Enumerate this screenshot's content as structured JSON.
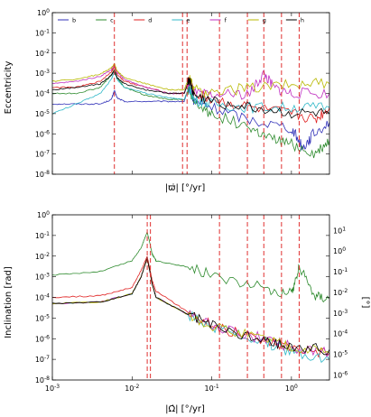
{
  "chart_data": [
    {
      "type": "line",
      "title": "",
      "xlabel": "|ϖ̇|  [°/yr]",
      "ylabel": "Eccentricity",
      "xscale": "log",
      "yscale": "log",
      "xlim": [
        0.001,
        3
      ],
      "ylim": [
        1e-08,
        1
      ],
      "xticks_shown": false,
      "yticks": [
        "10^0",
        "10^-1",
        "10^-2",
        "10^-3",
        "10^-4",
        "10^-5",
        "10^-6",
        "10^-7",
        "10^-8"
      ],
      "legend": {
        "placement": "top",
        "entries": [
          "b",
          "c",
          "d",
          "e",
          "f",
          "g",
          "h"
        ]
      },
      "vlines": [
        0.006,
        0.043,
        0.049,
        0.125,
        0.28,
        0.45,
        0.75,
        1.25
      ],
      "series": [
        {
          "name": "b",
          "color": "#3030b8",
          "x": [
            0.001,
            0.002,
            0.004,
            0.0055,
            0.006,
            0.0065,
            0.008,
            0.015,
            0.03,
            0.045,
            0.052,
            0.06,
            0.1,
            0.3,
            1,
            1.4,
            1.8,
            3
          ],
          "y": [
            3e-05,
            3e-05,
            3e-05,
            5e-05,
            0.00014,
            6e-05,
            4e-05,
            4e-05,
            4e-05,
            4e-05,
            0.0002,
            4e-05,
            2e-05,
            5e-06,
            2e-06,
            2e-07,
            8e-07,
            4e-06
          ]
        },
        {
          "name": "c",
          "color": "#2e8b2e",
          "x": [
            0.001,
            0.002,
            0.004,
            0.0055,
            0.006,
            0.0065,
            0.008,
            0.015,
            0.03,
            0.045,
            0.052,
            0.06,
            0.1,
            0.3,
            0.5,
            1,
            2,
            3
          ],
          "y": [
            0.0001,
            0.0001,
            0.0002,
            0.0008,
            0.0015,
            0.0006,
            0.0002,
            8e-05,
            5e-05,
            5e-05,
            0.0002,
            3e-05,
            1e-05,
            2e-06,
            6e-07,
            3e-07,
            1e-07,
            5e-07
          ]
        },
        {
          "name": "d",
          "color": "#e02020",
          "x": [
            0.001,
            0.002,
            0.004,
            0.0055,
            0.006,
            0.0065,
            0.008,
            0.015,
            0.03,
            0.045,
            0.052,
            0.06,
            0.1,
            0.3,
            1,
            2,
            3
          ],
          "y": [
            0.0002,
            0.0002,
            0.0004,
            0.0012,
            0.002,
            0.0009,
            0.0004,
            0.0002,
            0.0001,
            0.0001,
            0.0005,
            0.0001,
            5e-05,
            2e-05,
            1e-05,
            5e-06,
            2e-05
          ]
        },
        {
          "name": "e",
          "color": "#30b8c8",
          "x": [
            0.001,
            0.002,
            0.004,
            0.0055,
            0.006,
            0.0065,
            0.008,
            0.015,
            0.03,
            0.045,
            0.052,
            0.06,
            0.1,
            0.3,
            1,
            3
          ],
          "y": [
            1e-05,
            3e-05,
            0.0001,
            0.0005,
            0.0012,
            0.0005,
            0.0002,
            0.0001,
            6e-05,
            5e-05,
            0.0002,
            5e-05,
            3e-05,
            2e-05,
            2e-05,
            2e-05
          ]
        },
        {
          "name": "f",
          "color": "#c030c0",
          "x": [
            0.001,
            0.002,
            0.004,
            0.0055,
            0.006,
            0.0065,
            0.008,
            0.015,
            0.03,
            0.045,
            0.052,
            0.06,
            0.1,
            0.3,
            0.45,
            0.6,
            1,
            3
          ],
          "y": [
            0.0003,
            0.0004,
            0.0007,
            0.0015,
            0.0025,
            0.0011,
            0.0005,
            0.0002,
            0.0001,
            0.0001,
            0.0004,
            0.0001,
            8e-05,
            0.0001,
            0.001,
            0.0002,
            0.0001,
            0.0001
          ]
        },
        {
          "name": "g",
          "color": "#b8b800",
          "x": [
            0.001,
            0.002,
            0.004,
            0.0055,
            0.006,
            0.0065,
            0.008,
            0.015,
            0.03,
            0.045,
            0.052,
            0.06,
            0.1,
            0.3,
            1,
            3
          ],
          "y": [
            0.0004,
            0.0005,
            0.0009,
            0.0018,
            0.003,
            0.0013,
            0.0006,
            0.0003,
            0.00015,
            0.00015,
            0.0006,
            0.00015,
            0.0001,
            0.0002,
            0.0003,
            0.0003
          ]
        },
        {
          "name": "h",
          "color": "#000000",
          "x": [
            0.001,
            0.002,
            0.004,
            0.0055,
            0.006,
            0.0065,
            0.008,
            0.015,
            0.03,
            0.045,
            0.052,
            0.06,
            0.1,
            0.3,
            1,
            3
          ],
          "y": [
            0.00015,
            0.0002,
            0.0003,
            0.0008,
            0.0014,
            0.0006,
            0.0003,
            0.00015,
            0.0001,
            0.0001,
            0.0005,
            8e-05,
            4e-05,
            2e-05,
            1e-05,
            1e-05
          ]
        }
      ]
    },
    {
      "type": "line",
      "title": "",
      "xlabel": "|Ω̇|  [°/yr]",
      "ylabel": "Inclination [rad]",
      "ylabel_right": "[°]",
      "xscale": "log",
      "yscale": "log",
      "xlim": [
        0.001,
        3
      ],
      "ylim": [
        1e-08,
        1
      ],
      "xticks": [
        "10^-3",
        "10^-2",
        "10^-1",
        "10^0"
      ],
      "yticks": [
        "10^0",
        "10^-1",
        "10^-2",
        "10^-3",
        "10^-4",
        "10^-5",
        "10^-6",
        "10^-7",
        "10^-8"
      ],
      "yticks_right": [
        "10^1",
        "10^0",
        "10^-1",
        "10^-2",
        "10^-3",
        "10^-4",
        "10^-5",
        "10^-6"
      ],
      "vlines": [
        0.0155,
        0.017,
        0.125,
        0.28,
        0.45,
        0.75,
        1.25
      ],
      "series": [
        {
          "name": "c",
          "color": "#2e8b2e",
          "x": [
            0.001,
            0.004,
            0.01,
            0.013,
            0.0155,
            0.018,
            0.02,
            0.05,
            0.125,
            0.5,
            1,
            1.25,
            2,
            3
          ],
          "y": [
            0.0012,
            0.0018,
            0.006,
            0.025,
            0.15,
            0.012,
            0.006,
            0.003,
            0.001,
            0.00025,
            0.00015,
            0.003,
            0.00012,
            0.0001
          ]
        },
        {
          "name": "d",
          "color": "#e02020",
          "x": [
            0.001,
            0.004,
            0.01,
            0.013,
            0.0155,
            0.018,
            0.02,
            0.05,
            0.125,
            0.45,
            1,
            3
          ],
          "y": [
            0.0001,
            0.00012,
            0.0003,
            0.002,
            0.01,
            0.0006,
            0.0002,
            2e-05,
            3e-06,
            9e-07,
            4e-07,
            2e-07
          ]
        },
        {
          "name": "e",
          "color": "#30b8c8",
          "x": [
            0.001,
            0.004,
            0.01,
            0.013,
            0.0155,
            0.018,
            0.02,
            0.05,
            0.125,
            0.45,
            1,
            3
          ],
          "y": [
            5e-05,
            6e-05,
            0.00015,
            0.001,
            0.008,
            0.0004,
            0.0001,
            1.5e-05,
            3e-06,
            7e-07,
            2e-07,
            1e-07
          ]
        },
        {
          "name": "f",
          "color": "#c030c0",
          "x": [
            0.001,
            0.004,
            0.01,
            0.013,
            0.0155,
            0.018,
            0.02,
            0.05,
            0.125,
            0.45,
            1,
            3
          ],
          "y": [
            5e-05,
            6e-05,
            0.00015,
            0.001,
            0.008,
            0.0004,
            0.0001,
            1.5e-05,
            3e-06,
            1e-06,
            4e-07,
            2e-07
          ]
        },
        {
          "name": "g",
          "color": "#b8b800",
          "x": [
            0.001,
            0.004,
            0.01,
            0.013,
            0.0155,
            0.018,
            0.02,
            0.05,
            0.125,
            0.45,
            1,
            3
          ],
          "y": [
            5e-05,
            6e-05,
            0.00015,
            0.001,
            0.008,
            0.0004,
            0.0001,
            1.5e-05,
            3e-06,
            1e-06,
            4e-07,
            2e-07
          ]
        },
        {
          "name": "h",
          "color": "#000000",
          "x": [
            0.001,
            0.004,
            0.01,
            0.013,
            0.0155,
            0.018,
            0.02,
            0.05,
            0.125,
            0.45,
            1,
            3
          ],
          "y": [
            5e-05,
            6e-05,
            0.00015,
            0.001,
            0.008,
            0.0004,
            0.0001,
            1.5e-05,
            3e-06,
            8e-07,
            4e-07,
            3e-07
          ]
        }
      ]
    }
  ]
}
